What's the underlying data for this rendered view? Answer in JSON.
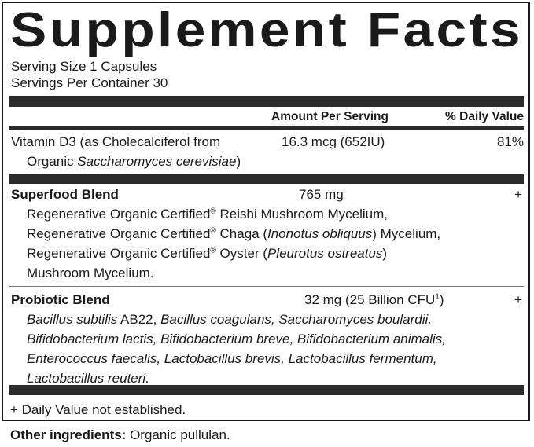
{
  "title": "Supplement Facts",
  "serving_size": "Serving Size 1 Capsules",
  "servings_per_container": "Servings Per Container 30",
  "header": {
    "amount": "Amount Per Serving",
    "daily_value": "% Daily Value"
  },
  "vitamin_d3": {
    "name_line1": "Vitamin D3 (as Cholecalciferol from",
    "name_line2_plain": "Organic ",
    "name_line2_italic": "Saccharomyces cerevisiae",
    "name_line2_end": ")",
    "amount": "16.3 mcg (652IU)",
    "daily_value": "81%"
  },
  "superfood": {
    "name": "Superfood Blend",
    "amount": "765 mg",
    "daily_value": "+",
    "l1a": "Regenerative Organic Certified",
    "reg": "®",
    "l1b": " Reishi Mushroom Mycelium,",
    "l2a": "Regenerative Organic Certified",
    "l2b": " Chaga (",
    "l2i": "Inonotus obliquus",
    "l2c": ") Mycelium,",
    "l3a": "Regenerative Organic Certified",
    "l3b": " Oyster (",
    "l3i": "Pleurotus ostreatus",
    "l3c": ")",
    "l4": "Mushroom Mycelium."
  },
  "probiotic": {
    "name": "Probiotic Blend",
    "amount": "32 mg (25 Billion CFU",
    "footnote_mark": "1",
    "amount_end": ")",
    "daily_value": "+",
    "l1i": "Bacillus subtilis",
    "l1a": " AB22, ",
    "l1i2": "Bacillus coagulans, Saccharomyces boulardii,",
    "l2": "Bifidobacterium lactis, Bifidobacterium breve, Bifidobacterium animalis,",
    "l3": "Enterococcus faecalis, Lactobacillus brevis, Lactobacillus fermentum,",
    "l4": "Lactobacillus reuteri."
  },
  "footnote": "+ Daily Value not established.",
  "other_ingredients": {
    "label": "Other ingredients:",
    "value": " Organic pullulan."
  }
}
